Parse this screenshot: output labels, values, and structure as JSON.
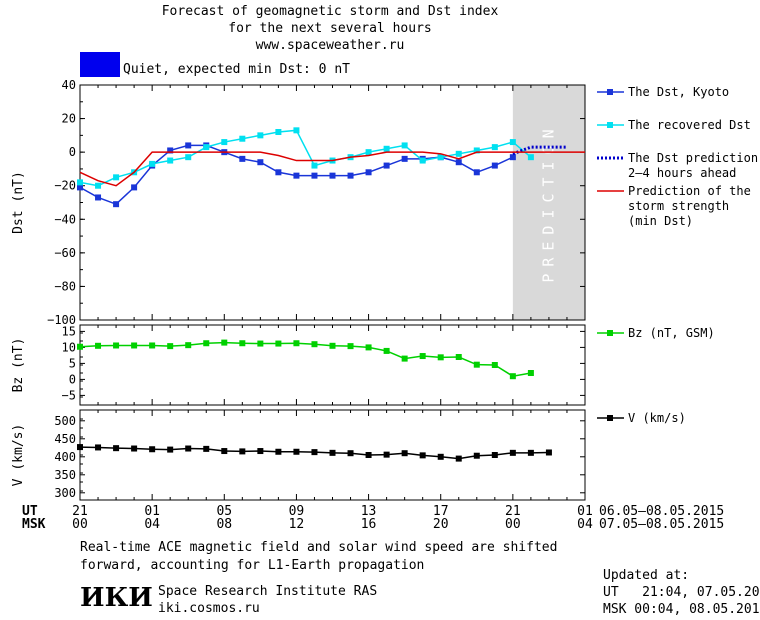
{
  "header": {
    "title_line1": "Forecast of geomagnetic storm and Dst index",
    "title_line2": "for the next several hours",
    "url": "www.spaceweather.ru",
    "status_text": "Quiet, expected min Dst: 0 nT",
    "status_color": "#0000ee"
  },
  "chart_data": [
    {
      "type": "line",
      "panel": "dst",
      "ylabel": "Dst (nT)",
      "ylim": [
        -100,
        40
      ],
      "yticks": [
        "40",
        "20",
        "0",
        "−20",
        "−40",
        "−60",
        "−80",
        "−100"
      ],
      "yticks_values": [
        40,
        20,
        0,
        -20,
        -40,
        -60,
        -80,
        -100
      ],
      "shaded_label": "PREDICTION",
      "shaded_from_hour": 24,
      "shaded_to_hour": 28,
      "series": [
        {
          "name": "The Dst, Kyoto",
          "color": "#1a35d8",
          "x": [
            0,
            1,
            2,
            3,
            4,
            5,
            6,
            7,
            8,
            9,
            10,
            11,
            12,
            13,
            14,
            15,
            16,
            17,
            18,
            19,
            20,
            21,
            22,
            23,
            24
          ],
          "values": [
            -21,
            -27,
            -31,
            -21,
            -8,
            1,
            4,
            4,
            0,
            -4,
            -6,
            -12,
            -14,
            -14,
            -14,
            -14,
            -12,
            -8,
            -4,
            -4,
            -3,
            -6,
            -12,
            -8,
            -3
          ]
        },
        {
          "name": "The recovered Dst",
          "color": "#00e0f0",
          "x": [
            0,
            1,
            2,
            3,
            4,
            5,
            6,
            7,
            8,
            9,
            10,
            11,
            12,
            13,
            14,
            15,
            16,
            17,
            18,
            19,
            20,
            21,
            22,
            23,
            24,
            25
          ],
          "values": [
            -18,
            -20,
            -15,
            -12,
            -7,
            -5,
            -3,
            3,
            6,
            8,
            10,
            12,
            13,
            -8,
            -5,
            -3,
            0,
            2,
            4,
            -5,
            -3,
            -1,
            1,
            3,
            6,
            -3
          ]
        },
        {
          "name": "The Dst prediction\n2–4 hours ahead",
          "color": "#0000cc",
          "x": [
            24,
            25,
            26,
            27
          ],
          "values": [
            -1,
            3,
            3,
            3
          ]
        },
        {
          "name": "Prediction of the\nstorm strength\n(min Dst)",
          "color": "#dd0000",
          "x": [
            0,
            1,
            2,
            3,
            4,
            5,
            6,
            7,
            8,
            9,
            10,
            11,
            12,
            13,
            14,
            15,
            16,
            17,
            18,
            19,
            20,
            21,
            22,
            23,
            24,
            25,
            26,
            27,
            28
          ],
          "values": [
            -12,
            -17,
            -20,
            -12,
            0,
            0,
            0,
            0,
            0,
            0,
            0,
            -2,
            -5,
            -5,
            -5,
            -3,
            -2,
            0,
            0,
            0,
            -1,
            -4,
            0,
            0,
            0,
            0,
            0,
            0,
            0
          ]
        }
      ]
    },
    {
      "type": "line",
      "panel": "bz",
      "ylabel": "Bz (nT)",
      "ylim": [
        -8,
        17
      ],
      "yticks": [
        "15",
        "10",
        "5",
        "0",
        "−5"
      ],
      "yticks_values": [
        15,
        10,
        5,
        0,
        -5
      ],
      "series": [
        {
          "name": "Bz (nT, GSM)",
          "color": "#00d000",
          "x": [
            0,
            1,
            2,
            3,
            4,
            5,
            6,
            7,
            8,
            9,
            10,
            11,
            12,
            13,
            14,
            15,
            16,
            17,
            18,
            19,
            20,
            21,
            22,
            23,
            24,
            25
          ],
          "values": [
            10.2,
            10.5,
            10.6,
            10.6,
            10.6,
            10.4,
            10.7,
            11.3,
            11.5,
            11.3,
            11.2,
            11.2,
            11.3,
            11.0,
            10.5,
            10.4,
            10.0,
            8.9,
            6.5,
            7.3,
            6.9,
            7.0,
            4.6,
            4.5,
            1.0,
            2.0
          ]
        }
      ]
    },
    {
      "type": "line",
      "panel": "v",
      "ylabel": "V (km/s)",
      "ylim": [
        280,
        530
      ],
      "yticks": [
        "500",
        "450",
        "400",
        "350",
        "300"
      ],
      "yticks_values": [
        500,
        450,
        400,
        350,
        300
      ],
      "series": [
        {
          "name": "V (km/s)",
          "color": "#000000",
          "x": [
            0,
            1,
            2,
            3,
            4,
            5,
            6,
            7,
            8,
            9,
            10,
            11,
            12,
            13,
            14,
            15,
            16,
            17,
            18,
            19,
            20,
            21,
            22,
            23,
            24,
            25,
            26
          ],
          "values": [
            427,
            426,
            424,
            423,
            421,
            420,
            423,
            422,
            416,
            415,
            416,
            414,
            414,
            413,
            411,
            410,
            405,
            406,
            410,
            404,
            400,
            395,
            403,
            405,
            411,
            411,
            412
          ]
        }
      ]
    }
  ],
  "x_axis": {
    "ut_label": "UT",
    "msk_label": "MSK",
    "ut_ticks": [
      "21",
      "01",
      "05",
      "09",
      "13",
      "17",
      "21",
      "01"
    ],
    "msk_ticks": [
      "00",
      "04",
      "08",
      "12",
      "16",
      "20",
      "00",
      "04"
    ],
    "tick_hours": [
      0,
      4,
      8,
      12,
      16,
      20,
      24,
      28
    ],
    "ut_range": "06.05–08.05.2015",
    "msk_range": "07.05–08.05.2015",
    "hour_range": [
      0,
      28
    ]
  },
  "footer": {
    "note_line1": "Real-time ACE magnetic field and solar wind speed are shifted",
    "note_line2": "forward, accounting for L1-Earth propagation",
    "logo_text": "ИКИ",
    "institute": "Space Research Institute RAS",
    "site": "iki.cosmos.ru",
    "updated_label": "Updated at:",
    "updated_ut": "UT   21:04, 07.05.2015",
    "updated_msk": "MSK 00:04, 08.05.2015"
  }
}
